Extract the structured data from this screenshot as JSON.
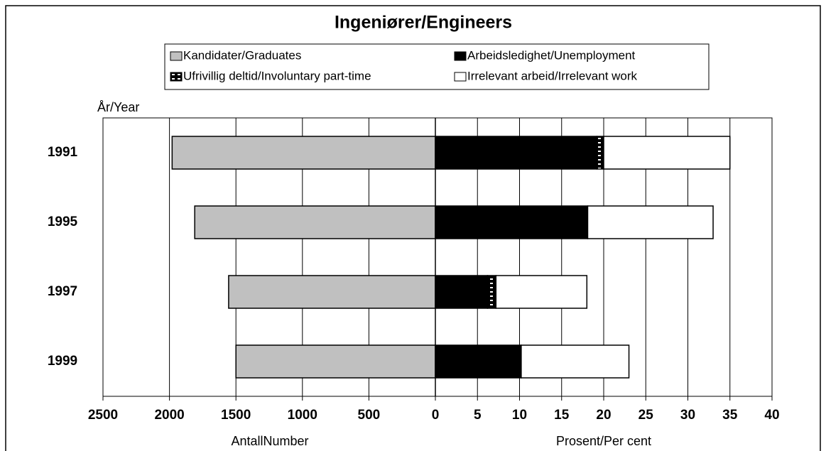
{
  "chart_data": [
    {
      "type": "bar",
      "orientation": "horizontal",
      "title": "Ingeniører/Engineers",
      "y_label": "År/Year",
      "x_label": "AntallNumber",
      "categories": [
        "1991",
        "1995",
        "1997",
        "1999"
      ],
      "series": [
        {
          "name": "Kandidater/Graduates",
          "color": "#c0c0c0",
          "values": [
            1980,
            1810,
            1555,
            1500
          ]
        }
      ],
      "xlim": [
        2500,
        0
      ],
      "xticks": [
        2500,
        2000,
        1500,
        1000,
        500
      ],
      "grid": true
    },
    {
      "type": "stacked_bar",
      "orientation": "horizontal",
      "x_label": "Prosent/Per cent",
      "series": [
        {
          "name": "Arbeidsledighet/Unemployment",
          "color": "#000000",
          "values": [
            19.2,
            18.1,
            6.2,
            10.2
          ]
        },
        {
          "name": "Ufrivillig deltid/Involuntary part-time",
          "color": "#000000",
          "pattern": "stripes",
          "values": [
            0.8,
            0,
            1.0,
            0
          ]
        },
        {
          "name": "Irrelevant arbeid/Irrelevant work",
          "color": "#ffffff",
          "values": [
            15,
            14.9,
            10.8,
            12.8
          ]
        }
      ],
      "xlim": [
        0,
        40
      ],
      "xticks": [
        0,
        5,
        10,
        15,
        20,
        25,
        30,
        35,
        40
      ],
      "grid": true
    }
  ]
}
